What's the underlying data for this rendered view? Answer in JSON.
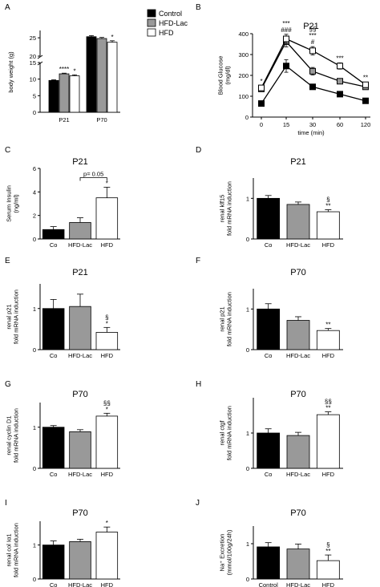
{
  "panel_letters": [
    "A",
    "B",
    "C",
    "D",
    "E",
    "F",
    "G",
    "H",
    "I",
    "J"
  ],
  "colors": {
    "control": "#000000",
    "hfd_lac": "#999999",
    "hfd": "#ffffff"
  },
  "legend": [
    "Control",
    "HFD-Lac",
    "HFD"
  ],
  "chart_data": [
    {
      "id": "A",
      "type": "bar",
      "title": "",
      "ylabel": "body weight (g)",
      "categories": [
        "P21",
        "P70"
      ],
      "series": [
        {
          "name": "Control",
          "values": [
            9.6,
            25.3
          ],
          "errors": [
            0.2,
            0.3
          ]
        },
        {
          "name": "HFD-Lac",
          "values": [
            11.6,
            24.8
          ],
          "errors": [
            0.2,
            0.3
          ]
        },
        {
          "name": "HFD",
          "values": [
            11.0,
            23.8
          ],
          "errors": [
            0.3,
            0.4
          ]
        }
      ],
      "broken_axis": true,
      "ylim_lower": [
        0,
        15
      ],
      "yticks_lower": [
        "0",
        "5",
        "10",
        "15"
      ],
      "ylim_upper": [
        20,
        25
      ],
      "yticks_upper": [
        "20",
        "25"
      ],
      "annotations": [
        {
          "category": 0,
          "series": 1,
          "text": "****"
        },
        {
          "category": 0,
          "series": 2,
          "text": "*"
        },
        {
          "category": 1,
          "series": 2,
          "text": "*"
        }
      ]
    },
    {
      "id": "B",
      "type": "line",
      "title": "P21",
      "xlabel": "time (min)",
      "ylabel": "Blood Glucose\n(mg/dl)",
      "x": [
        "0",
        "15",
        "30",
        "60",
        "120"
      ],
      "ylim": [
        0,
        400
      ],
      "yticks": [
        "0",
        "100",
        "200",
        "300",
        "400"
      ],
      "series": [
        {
          "name": "Control",
          "values": [
            65,
            245,
            145,
            110,
            78
          ],
          "errors": [
            6,
            30,
            12,
            8,
            6
          ]
        },
        {
          "name": "HFD-Lac",
          "values": [
            135,
            362,
            220,
            172,
            145
          ],
          "errors": [
            10,
            25,
            18,
            12,
            10
          ]
        },
        {
          "name": "HFD",
          "values": [
            140,
            375,
            318,
            245,
            155
          ],
          "errors": [
            10,
            22,
            20,
            15,
            12
          ]
        }
      ],
      "annotations": [
        {
          "x": 0,
          "lines": [
            "*"
          ]
        },
        {
          "x": 1,
          "lines": [
            "***",
            "###"
          ]
        },
        {
          "x": 2,
          "lines": [
            "§§",
            "***",
            "#"
          ]
        },
        {
          "x": 3,
          "lines": [
            "***"
          ]
        },
        {
          "x": 4,
          "lines": [
            "**"
          ]
        }
      ]
    },
    {
      "id": "C",
      "type": "bar",
      "title": "P21",
      "ylabel": "Serum Insulin\n(ng/ml)",
      "categories": [
        "Co",
        "HFD-Lac",
        "HFD"
      ],
      "values": [
        0.8,
        1.4,
        3.5
      ],
      "errors": [
        0.25,
        0.4,
        0.9
      ],
      "ylim": [
        0,
        6
      ],
      "yticks": [
        "0",
        "2",
        "4",
        "6"
      ],
      "annotations": [
        {
          "category": 2,
          "lines": [
            "*"
          ]
        }
      ],
      "bracket": {
        "from": 1,
        "to": 2,
        "text": "p= 0.05"
      }
    },
    {
      "id": "D",
      "type": "bar",
      "title": "P21",
      "ylabel": "renal klf15\nfold mRNA induction",
      "categories": [
        "Co",
        "HFD-Lac",
        "HFD"
      ],
      "values": [
        1.0,
        0.85,
        0.67
      ],
      "errors": [
        0.07,
        0.06,
        0.05
      ],
      "ylim": [
        0,
        1.5
      ],
      "yticks": [
        "0",
        "1"
      ],
      "annotations": [
        {
          "category": 2,
          "lines": [
            "§",
            "**"
          ]
        }
      ]
    },
    {
      "id": "E",
      "type": "bar",
      "title": "P21",
      "ylabel": "renal p21\nfold mRNA induction",
      "categories": [
        "Co",
        "HFD-Lac",
        "HFD"
      ],
      "values": [
        1.0,
        1.05,
        0.42
      ],
      "errors": [
        0.22,
        0.3,
        0.12
      ],
      "ylim": [
        0,
        1.6
      ],
      "yticks": [
        "0",
        "1"
      ],
      "annotations": [
        {
          "category": 2,
          "lines": [
            "§",
            "*"
          ]
        }
      ]
    },
    {
      "id": "F",
      "type": "bar",
      "title": "P70",
      "ylabel": "renal p21\nfold mRNA induction",
      "categories": [
        "Co",
        "HFD-Lac",
        "HFD"
      ],
      "values": [
        1.0,
        0.72,
        0.47
      ],
      "errors": [
        0.13,
        0.09,
        0.05
      ],
      "ylim": [
        0,
        1.5
      ],
      "yticks": [
        "0",
        "1"
      ],
      "annotations": [
        {
          "category": 2,
          "lines": [
            "**"
          ]
        }
      ]
    },
    {
      "id": "G",
      "type": "bar",
      "title": "P70",
      "ylabel": "renal cyclin D1\nfold mRNA induction",
      "categories": [
        "Co",
        "HFD-Lac",
        "HFD"
      ],
      "values": [
        1.0,
        0.89,
        1.27
      ],
      "errors": [
        0.04,
        0.05,
        0.07
      ],
      "ylim": [
        0,
        1.6
      ],
      "yticks": [
        "0",
        "1"
      ],
      "annotations": [
        {
          "category": 2,
          "lines": [
            "§§",
            "*"
          ]
        }
      ]
    },
    {
      "id": "H",
      "type": "bar",
      "title": "P70",
      "ylabel": "renal ctgf\nfold mRNA induction",
      "categories": [
        "Co",
        "HFD-Lac",
        "HFD"
      ],
      "values": [
        1.0,
        0.93,
        1.52
      ],
      "errors": [
        0.12,
        0.09,
        0.08
      ],
      "ylim": [
        0,
        2.0
      ],
      "yticks": [
        "0",
        "1"
      ],
      "annotations": [
        {
          "category": 2,
          "lines": [
            "§§",
            "**"
          ]
        }
      ]
    },
    {
      "id": "I",
      "type": "bar",
      "title": "P70",
      "ylabel": "renal col Iα1\nfold mRNA induction",
      "categories": [
        "Co",
        "HFD-Lac",
        "HFD"
      ],
      "values": [
        1.0,
        1.1,
        1.38
      ],
      "errors": [
        0.12,
        0.07,
        0.15
      ],
      "ylim": [
        0,
        1.7
      ],
      "yticks": [
        "0",
        "1"
      ],
      "annotations": [
        {
          "category": 2,
          "lines": [
            "*"
          ]
        }
      ]
    },
    {
      "id": "J",
      "type": "bar",
      "title": "P70",
      "ylabel": "Na⁺ Excretion\n(mmol/100g/24h)",
      "categories": [
        "Control",
        "HFD-Lac",
        "HFD"
      ],
      "values": [
        0.91,
        0.85,
        0.52
      ],
      "errors": [
        0.12,
        0.14,
        0.16
      ],
      "ylim": [
        0,
        1.5
      ],
      "yticks": [
        "0",
        "1"
      ],
      "annotations": [
        {
          "category": 2,
          "lines": [
            "§",
            "**"
          ]
        }
      ]
    }
  ]
}
